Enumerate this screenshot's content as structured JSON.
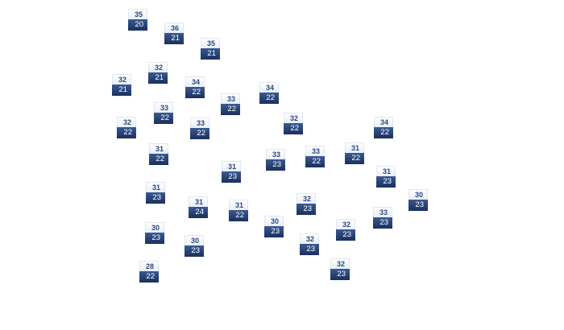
{
  "markers": [
    {
      "high": "35",
      "low": "20"
    },
    {
      "high": "36",
      "low": "21"
    },
    {
      "high": "35",
      "low": "21"
    },
    {
      "high": "32",
      "low": "21"
    },
    {
      "high": "32",
      "low": "21"
    },
    {
      "high": "34",
      "low": "22"
    },
    {
      "high": "33",
      "low": "22"
    },
    {
      "high": "34",
      "low": "22"
    },
    {
      "high": "33",
      "low": "22"
    },
    {
      "high": "32",
      "low": "22"
    },
    {
      "high": "33",
      "low": "22"
    },
    {
      "high": "32",
      "low": "22"
    },
    {
      "high": "34",
      "low": "22"
    },
    {
      "high": "31",
      "low": "22"
    },
    {
      "high": "33",
      "low": "23"
    },
    {
      "high": "33",
      "low": "22"
    },
    {
      "high": "31",
      "low": "22"
    },
    {
      "high": "31",
      "low": "23"
    },
    {
      "high": "31",
      "low": "23"
    },
    {
      "high": "31",
      "low": "23"
    },
    {
      "high": "31",
      "low": "24"
    },
    {
      "high": "31",
      "low": "22"
    },
    {
      "high": "30",
      "low": "23"
    },
    {
      "high": "32",
      "low": "23"
    },
    {
      "high": "33",
      "low": "23"
    },
    {
      "high": "30",
      "low": "23"
    },
    {
      "high": "30",
      "low": "23"
    },
    {
      "high": "30",
      "low": "23"
    },
    {
      "high": "32",
      "low": "23"
    },
    {
      "high": "32",
      "low": "23"
    },
    {
      "high": "32",
      "low": "23"
    },
    {
      "high": "28",
      "low": "22"
    }
  ],
  "colors": {
    "marker_dark": "#1f3766",
    "marker_text_high": "#2b4a80"
  }
}
